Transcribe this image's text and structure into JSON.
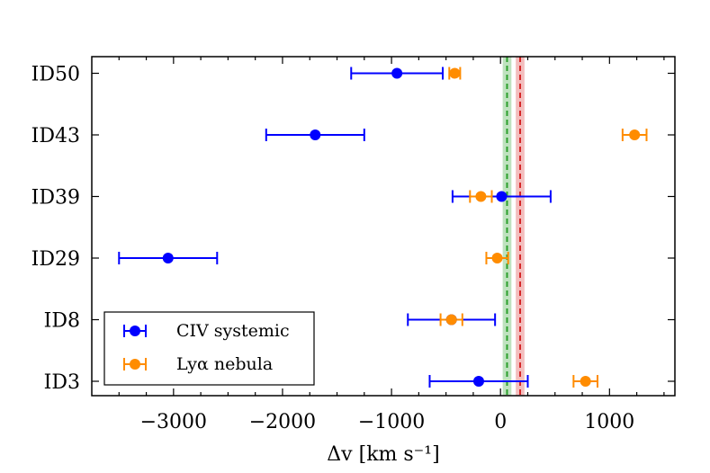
{
  "chart_data": {
    "type": "scatter",
    "xlabel": "Δv [km s⁻¹]",
    "xlim": [
      -3750,
      1600
    ],
    "xticks": [
      -3000,
      -2000,
      -1000,
      0,
      1000
    ],
    "xtick_labels": [
      "−3000",
      "−2000",
      "−1000",
      "0",
      "1000"
    ],
    "categories": [
      "ID3",
      "ID8",
      "ID29",
      "ID39",
      "ID43",
      "ID50"
    ],
    "series": [
      {
        "name": "CIV systemic",
        "color": "#0000ff",
        "x": [
          -200,
          -450,
          -3050,
          10,
          -1700,
          -950
        ],
        "xerr": [
          450,
          400,
          450,
          450,
          450,
          420
        ]
      },
      {
        "name": "Lyα nebula",
        "color": "#ff8c00",
        "x": [
          780,
          -450,
          -30,
          -180,
          1230,
          -420
        ],
        "xerr": [
          110,
          100,
          100,
          100,
          110,
          50
        ]
      }
    ],
    "reference_bands": [
      {
        "center": 60,
        "halfwidth": 40,
        "color": "#2ca02c"
      },
      {
        "center": 180,
        "halfwidth": 40,
        "color": "#d62728"
      }
    ],
    "legend": {
      "placement": "lower-left"
    },
    "grid": false
  }
}
